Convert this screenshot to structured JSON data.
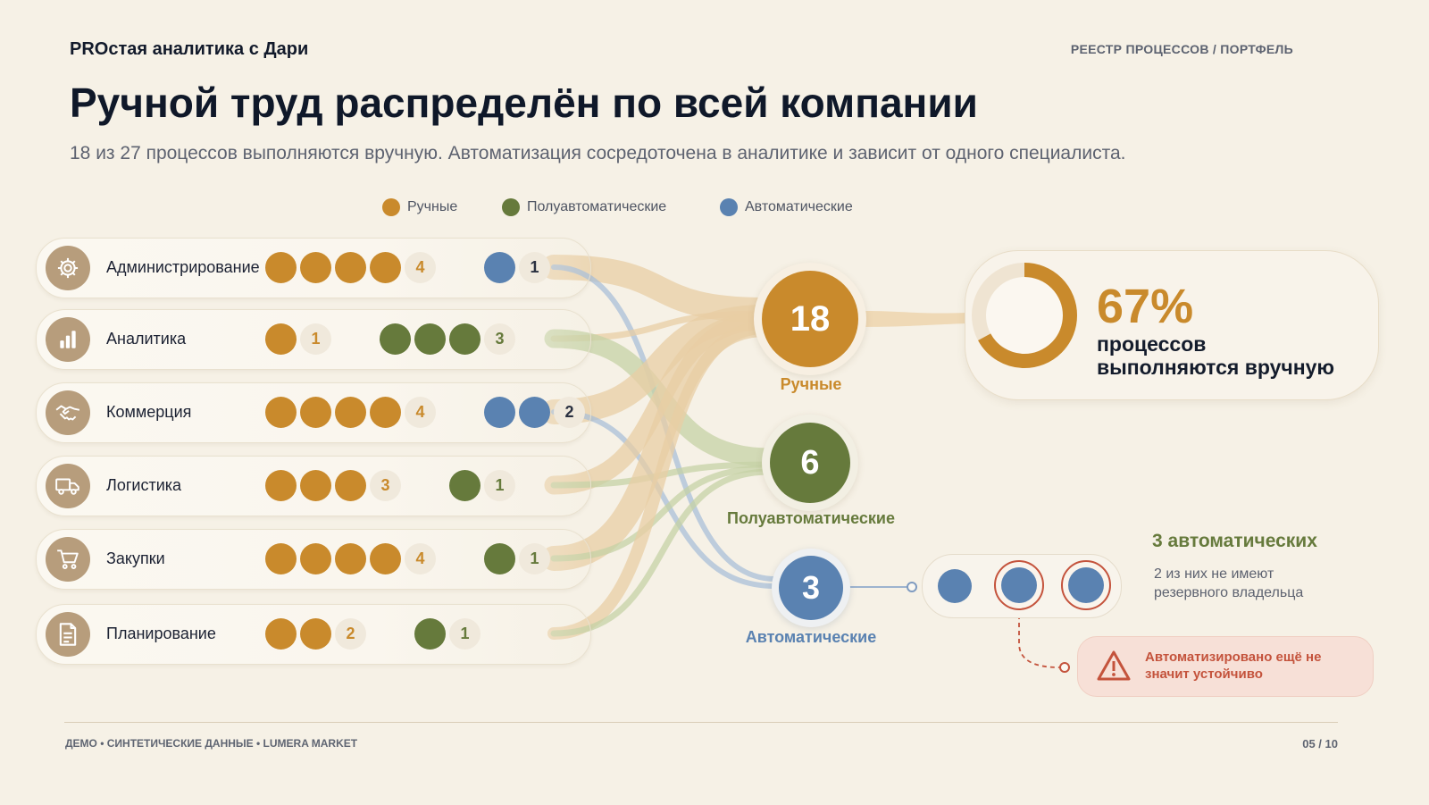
{
  "header": {
    "brand": "PROстая аналитика с Дари",
    "section": "РЕЕСТР ПРОЦЕССОВ / ПОРТФЕЛЬ",
    "title": "Ручной труд распределён по всей компании",
    "subtitle": "18 из 27 процессов выполняются вручную. Автоматизация сосредоточена в аналитике и зависит от одного специалиста."
  },
  "legend": [
    {
      "label": "Ручные",
      "color": "#c98a2c"
    },
    {
      "label": "Полуавтоматические",
      "color": "#667a3c"
    },
    {
      "label": "Автоматические",
      "color": "#5a82b1"
    }
  ],
  "colors": {
    "manual": "#c98a2c",
    "semi": "#667a3c",
    "auto": "#5a82b1"
  },
  "departments": [
    {
      "name": "Администрирование",
      "icon": "gear-icon",
      "manual": 4,
      "semi": 0,
      "auto": 1
    },
    {
      "name": "Аналитика",
      "icon": "bar-chart-icon",
      "manual": 1,
      "semi": 3,
      "auto": 0
    },
    {
      "name": "Коммерция",
      "icon": "handshake-icon",
      "manual": 4,
      "semi": 0,
      "auto": 2
    },
    {
      "name": "Логистика",
      "icon": "truck-icon",
      "manual": 3,
      "semi": 1,
      "auto": 0
    },
    {
      "name": "Закупки",
      "icon": "cart-icon",
      "manual": 4,
      "semi": 1,
      "auto": 0
    },
    {
      "name": "Планирование",
      "icon": "document-icon",
      "manual": 2,
      "semi": 1,
      "auto": 0
    }
  ],
  "totals": {
    "manual": {
      "value": "18",
      "label": "Ручные"
    },
    "semi": {
      "value": "6",
      "label": "Полуавтоматические"
    },
    "auto": {
      "value": "3",
      "label": "Автоматические"
    }
  },
  "kpi": {
    "percent": "67%",
    "fraction": 0.67,
    "line1": "процессов",
    "line2": "выполняются вручную"
  },
  "automation": {
    "title": "3 автоматических",
    "note_line1": "2 из них не имеют",
    "note_line2": "резервного владельца",
    "no_backup_count": 2,
    "warning": "Автоматизировано ещё не значит устойчиво"
  },
  "footer": {
    "left": "ДЕМО • СИНТЕТИЧЕСКИЕ ДАННЫЕ • LUMERA MARKET",
    "right": "05 / 10"
  }
}
